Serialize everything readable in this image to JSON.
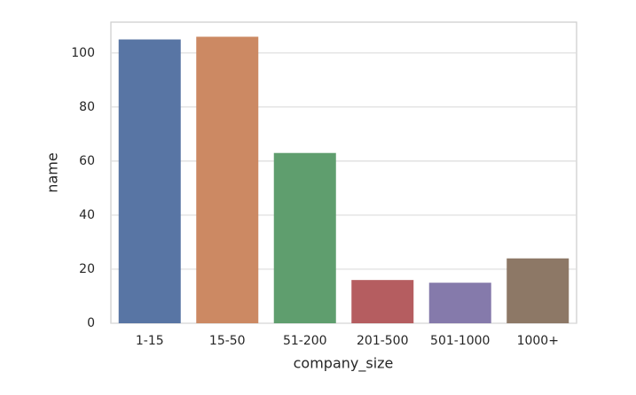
{
  "chart_data": {
    "type": "bar",
    "x_label": "company_size",
    "y_label": "name",
    "categories": [
      "1-15",
      "15-50",
      "51-200",
      "201-500",
      "501-1000",
      "1000+"
    ],
    "values": [
      105,
      106,
      63,
      16,
      15,
      24
    ],
    "colors": [
      "#5875a4",
      "#cc8963",
      "#5f9e6e",
      "#b55d60",
      "#857aab",
      "#8d7866"
    ],
    "ylim": [
      0,
      111.4
    ],
    "yticks": [
      0,
      20,
      40,
      60,
      80,
      100
    ],
    "grid": true
  }
}
